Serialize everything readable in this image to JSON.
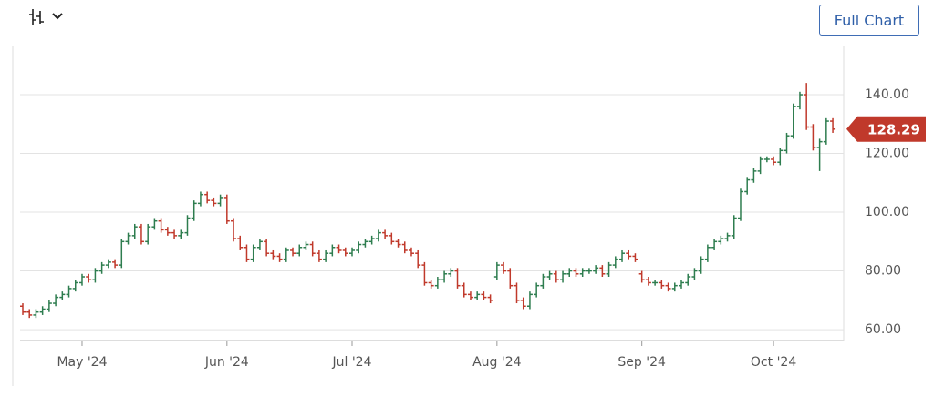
{
  "toolbar": {
    "button": "Full Chart"
  },
  "chart_data": {
    "type": "ohlc",
    "categories": [
      null,
      null,
      null,
      null,
      null,
      null,
      null,
      null,
      null,
      "May '24",
      null,
      null,
      null,
      null,
      null,
      null,
      null,
      null,
      null,
      null,
      null,
      null,
      null,
      null,
      null,
      null,
      null,
      null,
      null,
      null,
      null,
      "Jun '24",
      null,
      null,
      null,
      null,
      null,
      null,
      null,
      null,
      null,
      null,
      null,
      null,
      null,
      null,
      null,
      null,
      null,
      null,
      "Jul '24",
      null,
      null,
      null,
      null,
      null,
      null,
      null,
      null,
      null,
      null,
      null,
      null,
      null,
      null,
      null,
      null,
      null,
      null,
      null,
      null,
      null,
      "Aug '24",
      null,
      null,
      null,
      null,
      null,
      null,
      null,
      null,
      null,
      null,
      null,
      null,
      null,
      null,
      null,
      null,
      null,
      null,
      null,
      null,
      null,
      "Sep '24",
      null,
      null,
      null,
      null,
      null,
      null,
      null,
      null,
      null,
      null,
      null,
      null,
      null,
      null,
      null,
      null,
      null,
      null,
      null,
      "Oct '24",
      null,
      null,
      null,
      null,
      null,
      null,
      null,
      null,
      null
    ],
    "open": [
      68,
      66,
      65,
      66,
      67,
      69,
      71,
      72,
      74,
      76,
      78,
      77,
      80,
      82,
      83,
      82,
      90,
      92,
      95,
      90,
      95,
      97,
      94,
      93,
      92,
      93,
      98,
      103,
      106,
      104,
      103,
      105,
      97,
      91,
      88,
      84,
      88,
      90,
      86,
      85,
      84,
      87,
      86,
      88,
      89,
      86,
      84,
      86,
      88,
      87,
      86,
      87,
      89,
      90,
      91,
      93,
      92,
      90,
      89,
      87,
      86,
      82,
      76,
      75,
      77,
      79,
      80,
      75,
      72,
      71,
      72,
      71,
      78,
      82,
      80,
      75,
      70,
      68,
      72,
      75,
      78,
      79,
      77,
      79,
      80,
      79,
      80,
      80,
      81,
      79,
      82,
      84,
      86,
      85,
      79,
      77,
      76,
      76,
      75,
      74,
      75,
      76,
      78,
      80,
      84,
      88,
      90,
      91,
      92,
      98,
      107,
      111,
      114,
      118,
      118,
      117,
      121,
      126,
      136,
      140,
      129,
      122,
      124,
      131
    ],
    "high": [
      69,
      67,
      67,
      68,
      70,
      72,
      73,
      75,
      77,
      79,
      79,
      81,
      83,
      84,
      84,
      91,
      93,
      96,
      96,
      96,
      98,
      98,
      95,
      94,
      94,
      99,
      104,
      107,
      107,
      105,
      106,
      106,
      98,
      92,
      89,
      89,
      91,
      91,
      87,
      86,
      88,
      88,
      89,
      90,
      90,
      87,
      87,
      89,
      89,
      88,
      88,
      90,
      91,
      92,
      94,
      94,
      93,
      91,
      90,
      88,
      87,
      83,
      77,
      78,
      80,
      81,
      81,
      76,
      73,
      73,
      73,
      72,
      83,
      83,
      81,
      76,
      71,
      73,
      76,
      79,
      80,
      80,
      80,
      81,
      81,
      81,
      81,
      82,
      82,
      83,
      85,
      87,
      87,
      86,
      80,
      78,
      77,
      77,
      76,
      76,
      77,
      79,
      81,
      85,
      89,
      91,
      92,
      93,
      99,
      108,
      112,
      115,
      119,
      119,
      119,
      122,
      127,
      137,
      141,
      144,
      130,
      125,
      132,
      132
    ],
    "low": [
      65,
      64,
      64,
      65,
      66,
      68,
      70,
      71,
      73,
      75,
      76,
      76,
      79,
      81,
      81,
      81,
      89,
      91,
      89,
      89,
      94,
      93,
      92,
      91,
      91,
      92,
      97,
      102,
      103,
      102,
      102,
      96,
      90,
      87,
      83,
      83,
      87,
      85,
      84,
      83,
      83,
      85,
      85,
      87,
      85,
      83,
      83,
      85,
      86,
      85,
      85,
      86,
      88,
      89,
      90,
      91,
      89,
      88,
      86,
      85,
      81,
      75,
      74,
      74,
      76,
      78,
      74,
      71,
      70,
      70,
      70,
      69,
      77,
      79,
      74,
      69,
      67,
      67,
      71,
      74,
      77,
      76,
      76,
      78,
      78,
      78,
      79,
      79,
      78,
      78,
      81,
      83,
      84,
      83,
      76,
      75,
      75,
      74,
      73,
      73,
      74,
      75,
      77,
      79,
      83,
      87,
      89,
      90,
      91,
      97,
      106,
      110,
      113,
      117,
      116,
      116,
      120,
      125,
      135,
      128,
      121,
      114,
      123,
      127
    ],
    "close": [
      66,
      65,
      66,
      67,
      69,
      71,
      72,
      74,
      76,
      78,
      77,
      80,
      82,
      83,
      82,
      90,
      92,
      95,
      90,
      95,
      97,
      94,
      93,
      92,
      93,
      98,
      103,
      106,
      104,
      103,
      105,
      97,
      91,
      88,
      84,
      88,
      90,
      86,
      85,
      84,
      87,
      86,
      88,
      89,
      86,
      84,
      86,
      88,
      87,
      86,
      87,
      89,
      90,
      91,
      93,
      92,
      90,
      89,
      87,
      86,
      82,
      76,
      75,
      77,
      79,
      80,
      75,
      72,
      71,
      72,
      71,
      70,
      82,
      80,
      75,
      70,
      68,
      72,
      75,
      78,
      79,
      77,
      79,
      80,
      79,
      80,
      80,
      81,
      79,
      82,
      84,
      86,
      85,
      84,
      77,
      76,
      76,
      75,
      74,
      75,
      76,
      78,
      80,
      84,
      88,
      90,
      91,
      92,
      98,
      107,
      111,
      114,
      118,
      118,
      117,
      121,
      126,
      136,
      140,
      129,
      122,
      124,
      131,
      128.29
    ],
    "up_color": "#2e7d4f",
    "down_color": "#c0392b",
    "ylim": [
      56.3,
      155.2
    ],
    "yticks": [
      {
        "value": 60,
        "label": "60.00"
      },
      {
        "value": 80,
        "label": "80.00"
      },
      {
        "value": 100,
        "label": "100.00"
      },
      {
        "value": 120,
        "label": "120.00"
      },
      {
        "value": 140,
        "label": "140.00"
      }
    ],
    "grid": true
  }
}
